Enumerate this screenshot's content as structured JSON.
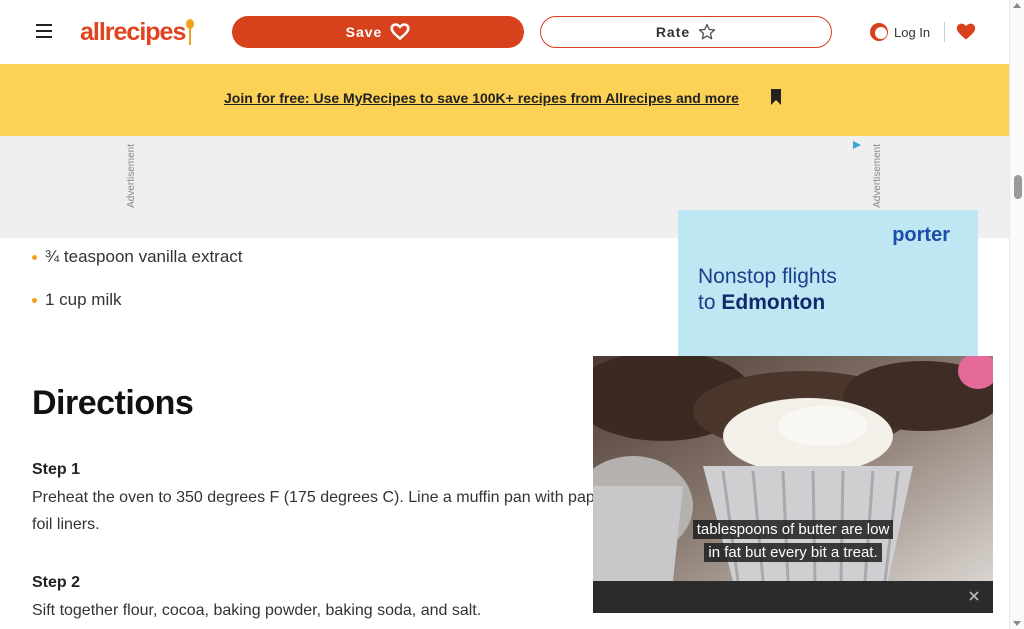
{
  "header": {
    "logo_text": "allrecipes",
    "save_label": "Save",
    "rate_label": "Rate",
    "login_label": "Log In"
  },
  "promo": {
    "link_text": "Join for free: Use MyRecipes to save 100K+ recipes from Allrecipes and more"
  },
  "ads": {
    "label": "Advertisement",
    "side_brand": "porter",
    "side_headline_line1": "Nonstop flights",
    "side_headline_to": "to ",
    "side_headline_city": "Edmonton"
  },
  "ingredients": [
    {
      "text": "¾ teaspoon vanilla extract"
    },
    {
      "text": "1 cup milk"
    }
  ],
  "directions": {
    "title": "Directions",
    "steps": [
      {
        "title": "Step 1",
        "text": "Preheat the oven to 350 degrees F (175 degrees C). Line a muffin pan with paper or foil liners."
      },
      {
        "title": "Step 2",
        "text": "Sift together flour, cocoa, baking powder, baking soda, and salt."
      }
    ]
  },
  "video": {
    "caption_line1": "tablespoons of butter are low",
    "caption_line2": "in fat but every bit a treat."
  },
  "colors": {
    "brand": "#d7411c",
    "promo_bg": "#fbd256",
    "bullet": "#f3a31b"
  },
  "icons": {
    "menu": "hamburger-icon",
    "save": "heart-icon",
    "rate": "star-icon",
    "login": "user-icon",
    "saved": "heart-icon",
    "close": "close-icon"
  }
}
